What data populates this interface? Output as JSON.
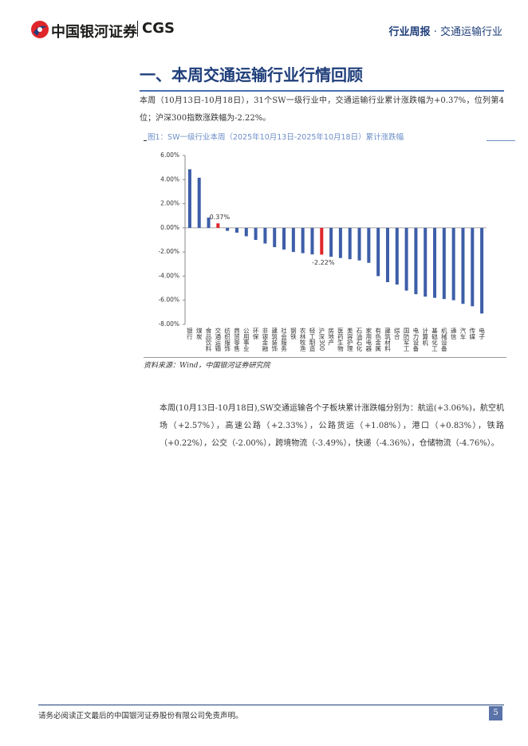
{
  "header": {
    "logo_cn": "中国银河证券",
    "logo_en": "CGS",
    "report_type": "行业周报",
    "separator": "·",
    "industry": "交通运输行业"
  },
  "section_title": "一、本周交通运输行业行情回顾",
  "paragraph_1": "本周（10月13日-10月18日），31个SW一级行业中，交通运输行业累计涨跌幅为+0.37%，位列第4位；沪深300指数涨跌幅为-2.22%。",
  "figure": {
    "caption": "图1：SW一级行业本周（2025年10月13日-2025年10月18日）累计涨跌幅",
    "source": "资料来源：Wind，中国银河证券研究院"
  },
  "chart_data": {
    "type": "bar",
    "categories": [
      "银行",
      "煤炭",
      "食品饮料",
      "交通运输",
      "纺织服饰",
      "商贸零售",
      "公用事业",
      "环保",
      "非银金融",
      "建筑装饰",
      "社会服务",
      "钢铁",
      "农林牧渔",
      "轻工制造",
      "沪深300",
      "房地产",
      "医药生物",
      "美容护理",
      "石油石化",
      "家用电器",
      "有色金属",
      "建筑材料",
      "综合",
      "国防军工",
      "电力设备",
      "计算机",
      "基础化工",
      "机械设备",
      "通信",
      "汽车",
      "传媒",
      "电子"
    ],
    "values": [
      4.85,
      4.15,
      0.85,
      0.37,
      -0.25,
      -0.4,
      -0.7,
      -1.0,
      -1.3,
      -1.6,
      -1.8,
      -2.0,
      -2.1,
      -2.2,
      -2.22,
      -2.4,
      -2.5,
      -2.6,
      -2.7,
      -2.9,
      -4.0,
      -4.5,
      -4.7,
      -5.2,
      -5.5,
      -5.7,
      -5.8,
      -5.9,
      -6.0,
      -6.3,
      -6.5,
      -7.1
    ],
    "value_labels": [
      null,
      null,
      null,
      "0.37%",
      null,
      null,
      null,
      null,
      null,
      null,
      null,
      null,
      null,
      null,
      "-2.22%",
      null,
      null,
      null,
      null,
      null,
      null,
      null,
      null,
      null,
      null,
      null,
      null,
      null,
      null,
      null,
      null,
      null
    ],
    "colors": [
      "#3d5ea8",
      "#3d5ea8",
      "#3d5ea8",
      "#e0262a",
      "#3d5ea8",
      "#3d5ea8",
      "#3d5ea8",
      "#3d5ea8",
      "#3d5ea8",
      "#3d5ea8",
      "#3d5ea8",
      "#3d5ea8",
      "#3d5ea8",
      "#3d5ea8",
      "#e0262a",
      "#3d5ea8",
      "#3d5ea8",
      "#3d5ea8",
      "#3d5ea8",
      "#3d5ea8",
      "#3d5ea8",
      "#3d5ea8",
      "#3d5ea8",
      "#3d5ea8",
      "#3d5ea8",
      "#3d5ea8",
      "#3d5ea8",
      "#3d5ea8",
      "#3d5ea8",
      "#3d5ea8",
      "#3d5ea8",
      "#3d5ea8"
    ],
    "ylim": [
      -8,
      6
    ],
    "yticks": [
      {
        "value": -8,
        "label": "-8.00%"
      },
      {
        "value": -6,
        "label": "-6.00%"
      },
      {
        "value": -4,
        "label": "-4.00%"
      },
      {
        "value": -2,
        "label": "-2.00%"
      },
      {
        "value": 0,
        "label": "0.00%"
      },
      {
        "value": 2,
        "label": "2.00%"
      },
      {
        "value": 4,
        "label": "4.00%"
      },
      {
        "value": 6,
        "label": "6.00%"
      }
    ],
    "grid": false
  },
  "paragraph_2": "本周(10月13日-10月18日),SW交通运输各个子板块累计涨跌幅分别为：航运(+3.06%)，航空机场（+2.57%），高速公路（+2.33%），公路货运（+1.08%），港口（+0.83%），铁路（+0.22%），公交（-2.00%），跨境物流（-3.49%），快递（-4.36%），仓储物流（-4.76%）。",
  "footer": {
    "disclaimer": "请务必阅读正文最后的中国银河证券股份有限公司免责声明。",
    "page": "5"
  }
}
